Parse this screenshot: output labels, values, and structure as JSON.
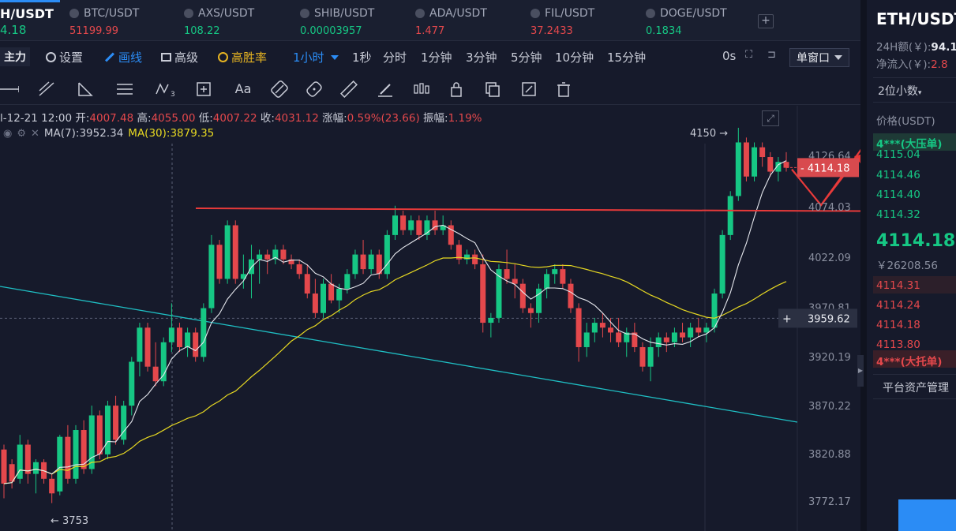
{
  "tabs": [
    {
      "symbol": "H/USDT",
      "price": "4.18",
      "dir": "up",
      "active": true
    },
    {
      "symbol": "BTC/USDT",
      "price": "51199.99",
      "dir": "down"
    },
    {
      "symbol": "AXS/USDT",
      "price": "108.22",
      "dir": "up"
    },
    {
      "symbol": "SHIB/USDT",
      "price": "0.00003957",
      "dir": "up"
    },
    {
      "symbol": "ADA/USDT",
      "price": "1.477",
      "dir": "down"
    },
    {
      "symbol": "FIL/USDT",
      "price": "37.2433",
      "dir": "down"
    },
    {
      "symbol": "DOGE/USDT",
      "price": "0.1834",
      "dir": "up"
    }
  ],
  "tab_add": "+",
  "toolbar": {
    "main_indicator": "主力",
    "settings": "设置",
    "draw": "画线",
    "advanced": "高级",
    "win_rate": "高胜率",
    "interval": "1小时",
    "periods": [
      "1秒",
      "分时",
      "1分钟",
      "3分钟",
      "5分钟",
      "10分钟",
      "15分钟"
    ],
    "countdown": "0s",
    "single_window": "单窗口"
  },
  "drawtools": [
    "horizontal-line-tool",
    "trend-line-tool",
    "angle-tool",
    "parallel-lines-tool",
    "wave-tool",
    "measure-tool",
    "text-tool",
    "magnet-tool",
    "eraser-tool",
    "ruler-tool",
    "brush-tool",
    "candles-tool",
    "lock-tool",
    "copy-tool",
    "edit-tool",
    "trash-tool"
  ],
  "drawtool_text": "Aa",
  "drawtool_wave_sub": "3",
  "ohlc": {
    "date": "l-12-21 12:00",
    "open_label": "开:",
    "open": "4007.48",
    "high_label": "高:",
    "high": "4055.00",
    "low_label": "低:",
    "low": "4007.22",
    "close_label": "收:",
    "close": "4031.12",
    "change_label": "涨幅:",
    "change": "0.59%(23.66)",
    "amp_label": "振幅:",
    "amp": "1.19%"
  },
  "ma": {
    "ma7": "MA(7):3952.34",
    "ma30": "MA(30):3879.35"
  },
  "chart_data": {
    "type": "candlestick",
    "yaxis_ticks": [
      4126.64,
      4074.03,
      4022.09,
      3970.81,
      3920.19,
      3870.22,
      3820.88,
      3772.17
    ],
    "yaxis_labels": [
      "4126.64",
      "4074.03",
      "4022.09",
      "3970.81",
      "3920.19",
      "3870.22",
      "3820.88",
      "3772.17"
    ],
    "current_price_label": "4114.18",
    "crosshair_price_label": "3959.62",
    "crosshair_plus": "+",
    "high_marker": "4150 →",
    "low_marker": "← 3753",
    "ohlc": [
      [
        3825,
        3830,
        3775,
        3790
      ],
      [
        3810,
        3815,
        3785,
        3792
      ],
      [
        3795,
        3840,
        3790,
        3830
      ],
      [
        3830,
        3835,
        3790,
        3800
      ],
      [
        3800,
        3815,
        3780,
        3812
      ],
      [
        3812,
        3815,
        3790,
        3795
      ],
      [
        3795,
        3800,
        3770,
        3780
      ],
      [
        3782,
        3840,
        3778,
        3838
      ],
      [
        3838,
        3850,
        3790,
        3795
      ],
      [
        3795,
        3850,
        3790,
        3845
      ],
      [
        3845,
        3855,
        3800,
        3805
      ],
      [
        3805,
        3870,
        3800,
        3860
      ],
      [
        3860,
        3865,
        3815,
        3820
      ],
      [
        3820,
        3875,
        3815,
        3870
      ],
      [
        3870,
        3880,
        3830,
        3835
      ],
      [
        3835,
        3875,
        3830,
        3870
      ],
      [
        3870,
        3920,
        3860,
        3915
      ],
      [
        3915,
        3955,
        3900,
        3950
      ],
      [
        3950,
        3955,
        3905,
        3910
      ],
      [
        3910,
        3935,
        3890,
        3895
      ],
      [
        3895,
        3940,
        3890,
        3935
      ],
      [
        3935,
        3975,
        3925,
        3950
      ],
      [
        3950,
        3955,
        3925,
        3930
      ],
      [
        3930,
        3950,
        3920,
        3945
      ],
      [
        3945,
        3950,
        3915,
        3920
      ],
      [
        3920,
        3975,
        3915,
        3970
      ],
      [
        3970,
        4045,
        3965,
        4035
      ],
      [
        4035,
        4040,
        3995,
        4000
      ],
      [
        4000,
        4060,
        3995,
        4055
      ],
      [
        4055,
        4060,
        3995,
        4000
      ],
      [
        4000,
        4025,
        3990,
        4005
      ],
      [
        4005,
        4035,
        3980,
        4020
      ],
      [
        4020,
        4030,
        3995,
        4025
      ],
      [
        4025,
        4030,
        4005,
        4020
      ],
      [
        4020,
        4035,
        4015,
        4030
      ],
      [
        4030,
        4035,
        4015,
        4020
      ],
      [
        4020,
        4025,
        4010,
        4015
      ],
      [
        4015,
        4020,
        4000,
        4005
      ],
      [
        4005,
        4015,
        3980,
        3985
      ],
      [
        3985,
        4000,
        3960,
        3965
      ],
      [
        3965,
        4000,
        3960,
        3995
      ],
      [
        3995,
        4005,
        3975,
        3978
      ],
      [
        3978,
        3995,
        3965,
        3990
      ],
      [
        3990,
        4010,
        3985,
        4005
      ],
      [
        4005,
        4030,
        4000,
        4025
      ],
      [
        4025,
        4040,
        4005,
        4010
      ],
      [
        4010,
        4030,
        4005,
        4025
      ],
      [
        4025,
        4030,
        4000,
        4005
      ],
      [
        4005,
        4050,
        4000,
        4045
      ],
      [
        4045,
        4075,
        4040,
        4065
      ],
      [
        4065,
        4070,
        4045,
        4050
      ],
      [
        4050,
        4065,
        4045,
        4060
      ],
      [
        4060,
        4065,
        4040,
        4045
      ],
      [
        4045,
        4065,
        4040,
        4060
      ],
      [
        4060,
        4070,
        4045,
        4050
      ],
      [
        4050,
        4065,
        4045,
        4055
      ],
      [
        4055,
        4060,
        4030,
        4035
      ],
      [
        4035,
        4040,
        4015,
        4020
      ],
      [
        4020,
        4030,
        4015,
        4025
      ],
      [
        4025,
        4030,
        4010,
        4015
      ],
      [
        4015,
        4025,
        3945,
        3955
      ],
      [
        3955,
        3965,
        3940,
        3960
      ],
      [
        3960,
        4015,
        3955,
        4010
      ],
      [
        4010,
        4030,
        3995,
        4000
      ],
      [
        4000,
        4015,
        3980,
        3995
      ],
      [
        3995,
        4000,
        3965,
        3970
      ],
      [
        3970,
        3975,
        3950,
        3965
      ],
      [
        3965,
        3995,
        3955,
        3990
      ],
      [
        3990,
        4010,
        3980,
        4005
      ],
      [
        4005,
        4015,
        3995,
        4010
      ],
      [
        4010,
        4015,
        3990,
        3995
      ],
      [
        3995,
        4000,
        3965,
        3970
      ],
      [
        3970,
        3975,
        3915,
        3930
      ],
      [
        3930,
        3955,
        3920,
        3945
      ],
      [
        3945,
        3960,
        3935,
        3955
      ],
      [
        3955,
        3965,
        3940,
        3950
      ],
      [
        3950,
        3960,
        3935,
        3945
      ],
      [
        3945,
        3960,
        3930,
        3935
      ],
      [
        3935,
        3950,
        3920,
        3945
      ],
      [
        3945,
        3955,
        3925,
        3930
      ],
      [
        3930,
        3935,
        3905,
        3910
      ],
      [
        3910,
        3940,
        3895,
        3930
      ],
      [
        3930,
        3945,
        3920,
        3940
      ],
      [
        3940,
        3945,
        3925,
        3935
      ],
      [
        3935,
        3950,
        3930,
        3945
      ],
      [
        3945,
        3955,
        3935,
        3940
      ],
      [
        3940,
        3955,
        3930,
        3950
      ],
      [
        3950,
        3960,
        3940,
        3945
      ],
      [
        3945,
        3955,
        3935,
        3950
      ],
      [
        3950,
        3990,
        3945,
        3985
      ],
      [
        3985,
        4050,
        3980,
        4045
      ],
      [
        4045,
        4090,
        4040,
        4085
      ],
      [
        4085,
        4155,
        4080,
        4140
      ],
      [
        4140,
        4145,
        4100,
        4105
      ],
      [
        4105,
        4140,
        4100,
        4135
      ],
      [
        4135,
        4140,
        4115,
        4125
      ],
      [
        4125,
        4130,
        4105,
        4110
      ],
      [
        4110,
        4125,
        4100,
        4120
      ],
      [
        4120,
        4130,
        4110,
        4114
      ]
    ],
    "support_line_value": 4074.03
  },
  "rpanel": {
    "pair": "ETH/USDT",
    "vol_label": "24H额(￥):",
    "vol_value": "94.1",
    "inflow_label": "净流入(￥):",
    "inflow_value": "2.8",
    "decimal": "2位小数",
    "price_header": "价格(USDT)",
    "asks": [
      {
        "price": "4***(大压单)",
        "big": true
      },
      {
        "price": "4115.04"
      },
      {
        "price": "4114.46"
      },
      {
        "price": "4114.40"
      },
      {
        "price": "4114.32"
      }
    ],
    "last_price": "4114.18",
    "cny_price": "￥26208.56",
    "bids": [
      {
        "price": "4114.31"
      },
      {
        "price": "4114.24"
      },
      {
        "price": "4114.18"
      },
      {
        "price": "4113.80"
      },
      {
        "price": "4***(大托单)",
        "big": true
      }
    ],
    "assets": "平台资产管理"
  },
  "colors": {
    "up": "#16c784",
    "down": "#e4484c",
    "accent": "#2b8cf5",
    "ma7": "#e6e8ee",
    "ma30": "#e6d822",
    "trend": "#1fbfc4",
    "annot": "#e83a3a"
  }
}
